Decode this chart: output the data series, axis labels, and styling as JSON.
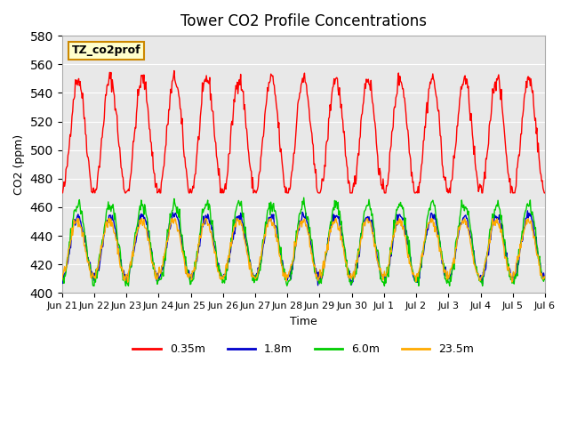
{
  "title": "Tower CO2 Profile Concentrations",
  "xlabel": "Time",
  "ylabel": "CO2 (ppm)",
  "ylim": [
    400,
    580
  ],
  "yticks": [
    400,
    420,
    440,
    460,
    480,
    500,
    520,
    540,
    560,
    580
  ],
  "background_color": "#ffffff",
  "plot_bg_color": "#e8e8e8",
  "colors": {
    "0.35m": "#ff0000",
    "1.8m": "#0000cc",
    "6.0m": "#00cc00",
    "23.5m": "#ffaa00"
  },
  "legend_labels": [
    "0.35m",
    "1.8m",
    "6.0m",
    "23.5m"
  ],
  "annotation_text": "TZ_co2prof",
  "annotation_bg": "#ffffcc",
  "annotation_border": "#cc8800",
  "num_days": 15,
  "tick_labels": [
    "Jun 21",
    "Jun 22",
    "Jun 23",
    "Jun 24",
    "Jun 25",
    "Jun 26",
    "Jun 27",
    "Jun 28",
    "Jun 29",
    "Jun 30",
    "Jul 1",
    "Jul 2",
    "Jul 3",
    "Jul 4",
    "Jul 5",
    "Jul 6"
  ]
}
